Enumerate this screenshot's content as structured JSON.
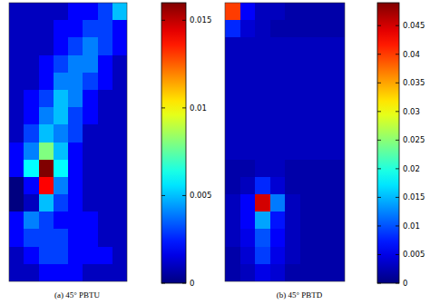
{
  "chart_data": [
    {
      "type": "heatmap",
      "title": "(a) 45° PBTU",
      "tick_labels": false,
      "colorbar_lim": [
        0,
        0.016
      ],
      "colorbar_ticks": [
        0,
        0.005,
        0.01,
        0.015
      ],
      "cells": [
        [
          0.001,
          0.001,
          0.001,
          0.001,
          0.002,
          0.002,
          0.003,
          0.005
        ],
        [
          0.001,
          0.001,
          0.001,
          0.002,
          0.002,
          0.003,
          0.003,
          0.002
        ],
        [
          0.001,
          0.001,
          0.001,
          0.002,
          0.003,
          0.004,
          0.003,
          0.002
        ],
        [
          0.001,
          0.001,
          0.002,
          0.003,
          0.004,
          0.004,
          0.002,
          0.001
        ],
        [
          0.001,
          0.001,
          0.002,
          0.004,
          0.004,
          0.003,
          0.002,
          0.001
        ],
        [
          0.001,
          0.002,
          0.003,
          0.005,
          0.004,
          0.002,
          0.001,
          0.001
        ],
        [
          0.001,
          0.002,
          0.004,
          0.005,
          0.003,
          0.002,
          0.001,
          0.001
        ],
        [
          0.001,
          0.003,
          0.005,
          0.004,
          0.003,
          0.001,
          0.001,
          0.001
        ],
        [
          0.002,
          0.004,
          0.008,
          0.005,
          0.002,
          0.001,
          0.001,
          0.001
        ],
        [
          0.002,
          0.006,
          0.016,
          0.006,
          0.002,
          0.001,
          0.001,
          0.001
        ],
        [
          0.0,
          0.002,
          0.014,
          0.004,
          0.002,
          0.001,
          0.001,
          0.001
        ],
        [
          0.0,
          0.001,
          0.005,
          0.003,
          0.002,
          0.001,
          0.001,
          0.001
        ],
        [
          0.002,
          0.004,
          0.003,
          0.002,
          0.002,
          0.002,
          0.001,
          0.001
        ],
        [
          0.002,
          0.003,
          0.003,
          0.003,
          0.002,
          0.002,
          0.001,
          0.001
        ],
        [
          0.001,
          0.002,
          0.003,
          0.003,
          0.002,
          0.002,
          0.002,
          0.001
        ],
        [
          0.001,
          0.001,
          0.002,
          0.002,
          0.002,
          0.001,
          0.001,
          0.001
        ]
      ]
    },
    {
      "type": "heatmap",
      "title": "(b) 45° PBTD",
      "tick_labels": false,
      "colorbar_lim": [
        0,
        0.049
      ],
      "colorbar_ticks": [
        0,
        0.005,
        0.01,
        0.015,
        0.02,
        0.025,
        0.03,
        0.035,
        0.04,
        0.045
      ],
      "cells": [
        [
          0.04,
          0.006,
          0.003,
          0.003,
          0.002,
          0.002,
          0.002,
          0.002
        ],
        [
          0.008,
          0.004,
          0.003,
          0.002,
          0.002,
          0.002,
          0.002,
          0.002
        ],
        [
          0.003,
          0.003,
          0.003,
          0.003,
          0.003,
          0.003,
          0.003,
          0.003
        ],
        [
          0.003,
          0.003,
          0.003,
          0.003,
          0.003,
          0.003,
          0.003,
          0.003
        ],
        [
          0.003,
          0.003,
          0.003,
          0.003,
          0.003,
          0.003,
          0.003,
          0.003
        ],
        [
          0.003,
          0.003,
          0.003,
          0.003,
          0.003,
          0.003,
          0.003,
          0.003
        ],
        [
          0.003,
          0.003,
          0.003,
          0.003,
          0.003,
          0.003,
          0.003,
          0.003
        ],
        [
          0.003,
          0.003,
          0.003,
          0.003,
          0.003,
          0.003,
          0.003,
          0.003
        ],
        [
          0.003,
          0.003,
          0.003,
          0.003,
          0.003,
          0.003,
          0.003,
          0.003
        ],
        [
          0.002,
          0.002,
          0.003,
          0.003,
          0.002,
          0.002,
          0.002,
          0.002
        ],
        [
          0.002,
          0.003,
          0.008,
          0.004,
          0.002,
          0.002,
          0.002,
          0.002
        ],
        [
          0.003,
          0.006,
          0.045,
          0.012,
          0.003,
          0.002,
          0.002,
          0.002
        ],
        [
          0.003,
          0.006,
          0.014,
          0.007,
          0.003,
          0.002,
          0.002,
          0.002
        ],
        [
          0.003,
          0.005,
          0.01,
          0.006,
          0.003,
          0.002,
          0.002,
          0.002
        ],
        [
          0.002,
          0.004,
          0.009,
          0.005,
          0.003,
          0.002,
          0.002,
          0.002
        ],
        [
          0.002,
          0.003,
          0.005,
          0.004,
          0.002,
          0.002,
          0.002,
          0.002
        ]
      ]
    }
  ]
}
